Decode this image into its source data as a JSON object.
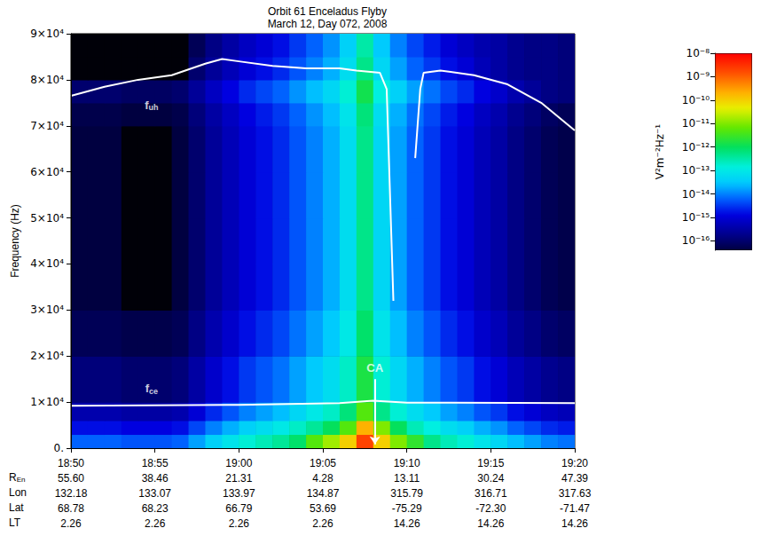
{
  "chart_data": {
    "type": "spectrogram",
    "title": "Orbit 61 Enceladus Flyby",
    "subtitle": "March 12, Day 072, 2008",
    "y_label": "Frequency (Hz)",
    "grid": false,
    "xlim": [
      1130,
      1160
    ],
    "xticks": [
      {
        "value": 1130,
        "label": "18:50"
      },
      {
        "value": 1135,
        "label": "18:55"
      },
      {
        "value": 1140,
        "label": "19:00"
      },
      {
        "value": 1145,
        "label": "19:05"
      },
      {
        "value": 1150,
        "label": "19:10"
      },
      {
        "value": 1155,
        "label": "19:15"
      },
      {
        "value": 1160,
        "label": "19:20"
      }
    ],
    "ephemeris": [
      {
        "name": {
          "text": "R",
          "subscript": "En"
        },
        "labels": [
          "55.60",
          "38.46",
          "21.31",
          "4.28",
          "13.11",
          "30.24",
          "47.39"
        ]
      },
      {
        "name": {
          "text": "Lon"
        },
        "labels": [
          "132.18",
          "133.07",
          "133.97",
          "134.87",
          "315.79",
          "316.71",
          "317.63"
        ]
      },
      {
        "name": {
          "text": "Lat"
        },
        "labels": [
          "68.78",
          "68.23",
          "66.79",
          "53.69",
          "-75.29",
          "-72.30",
          "-71.47"
        ]
      },
      {
        "name": {
          "text": "LT"
        },
        "labels": [
          "2.26",
          "2.26",
          "2.26",
          "2.26",
          "14.26",
          "14.26",
          "14.26"
        ]
      }
    ],
    "ylim": [
      0,
      90000
    ],
    "yticks": [
      {
        "value": 0,
        "label": "0."
      },
      {
        "value": 10000,
        "label": "1×10⁴"
      },
      {
        "value": 20000,
        "label": "2×10⁴"
      },
      {
        "value": 30000,
        "label": "3×10⁴"
      },
      {
        "value": 40000,
        "label": "4×10⁴"
      },
      {
        "value": 50000,
        "label": "5×10⁴"
      },
      {
        "value": 60000,
        "label": "6×10⁴"
      },
      {
        "value": 70000,
        "label": "7×10⁴"
      },
      {
        "value": 80000,
        "label": "8×10⁴"
      },
      {
        "value": 90000,
        "label": "9×10⁴"
      }
    ],
    "cells": {
      "x_edges": [
        1130,
        1131,
        1132,
        1133,
        1134,
        1135,
        1136,
        1137,
        1138,
        1139,
        1140,
        1141,
        1142,
        1143,
        1144,
        1145,
        1146,
        1147,
        1148,
        1149,
        1150,
        1151,
        1152,
        1153,
        1154,
        1155,
        1156,
        1157,
        1158,
        1159,
        1160
      ],
      "y_edges": [
        0,
        3000,
        6000,
        10000,
        20000,
        30000,
        40000,
        50000,
        60000,
        70000,
        75000,
        80000,
        85000,
        90000
      ],
      "values": [
        [
          6.3e-15,
          6.3e-15,
          6.3e-15,
          5e-15,
          5e-15,
          5e-15,
          6.3e-15,
          1.6e-14,
          4e-14,
          8e-14,
          1.6e-13,
          2.5e-13,
          4e-13,
          8e-13,
          5e-12,
          1.6e-11,
          1e-10,
          2e-09,
          1e-10,
          1e-11,
          2.5e-12,
          5e-13,
          2.5e-13,
          1.6e-13,
          8e-14,
          5e-14,
          2.5e-14,
          1.6e-14,
          1e-14,
          8e-15
        ],
        [
          1.6e-15,
          1.6e-15,
          1.6e-15,
          1.3e-15,
          1.3e-15,
          1.3e-15,
          1.6e-15,
          4e-15,
          1e-14,
          2e-14,
          4e-14,
          6.3e-14,
          1e-13,
          2e-13,
          4e-13,
          1e-12,
          5e-12,
          2e-10,
          1e-11,
          1e-12,
          2.5e-13,
          1.3e-13,
          6.3e-14,
          4e-14,
          2e-14,
          1.3e-14,
          6.3e-15,
          4e-15,
          2.5e-15,
          2e-15
        ],
        [
          4e-16,
          4e-16,
          4e-16,
          3.2e-16,
          3.2e-16,
          3.2e-16,
          4e-16,
          1e-15,
          2.5e-15,
          5e-15,
          1e-14,
          1.6e-14,
          2.5e-14,
          5e-14,
          1e-13,
          2e-13,
          6.3e-13,
          5e-12,
          5e-13,
          1.6e-13,
          6.3e-14,
          3.2e-14,
          1.6e-14,
          1e-14,
          5e-15,
          3.2e-15,
          1.6e-15,
          1e-15,
          6.3e-16,
          5e-16
        ],
        [
          1.3e-16,
          1.3e-16,
          1.3e-16,
          1e-16,
          1e-16,
          1e-16,
          1.3e-16,
          3.2e-16,
          8e-16,
          1.6e-15,
          3.2e-15,
          5e-15,
          8e-15,
          1.6e-14,
          3.2e-14,
          6.3e-14,
          2e-13,
          1.6e-12,
          1.6e-13,
          5e-14,
          2e-14,
          1e-14,
          5e-15,
          3.2e-15,
          1.6e-15,
          1e-15,
          5e-16,
          3.2e-16,
          2e-16,
          1.6e-16
        ],
        [
          6.3e-17,
          6.3e-17,
          6.3e-17,
          5e-17,
          5e-17,
          5e-17,
          6.3e-17,
          1.6e-16,
          4e-16,
          8e-16,
          1.6e-15,
          2.5e-15,
          4e-15,
          8e-15,
          1.6e-14,
          3.2e-14,
          1e-13,
          8e-13,
          8e-14,
          2.5e-14,
          1e-14,
          5e-15,
          2.5e-15,
          1.6e-15,
          8e-16,
          5e-16,
          2.5e-16,
          1.6e-16,
          1e-16,
          8e-17
        ],
        [
          4e-17,
          4e-17,
          4e-17,
          3.2e-17,
          3.2e-17,
          3.2e-17,
          4e-17,
          1e-16,
          2.5e-16,
          5e-16,
          1e-15,
          1.6e-15,
          2.5e-15,
          5e-15,
          1e-14,
          2e-14,
          6.3e-14,
          5e-13,
          5e-14,
          1.6e-14,
          6.3e-15,
          3.2e-15,
          1.6e-15,
          1e-15,
          5e-16,
          3.2e-16,
          1.6e-16,
          1e-16,
          6.3e-17,
          5e-17
        ],
        [
          4e-17,
          4e-17,
          4e-17,
          3.2e-17,
          3.2e-17,
          3.2e-17,
          4e-17,
          1e-16,
          2.5e-16,
          5e-16,
          1e-15,
          1.6e-15,
          2.5e-15,
          5e-15,
          1e-14,
          2e-14,
          6.3e-14,
          5e-13,
          5e-14,
          1.6e-14,
          6.3e-15,
          3.2e-15,
          1.6e-15,
          1e-15,
          5e-16,
          3.2e-16,
          1.6e-16,
          1e-16,
          6.3e-17,
          5e-17
        ],
        [
          4e-17,
          4e-17,
          4e-17,
          3.2e-17,
          3.2e-17,
          3.2e-17,
          4e-17,
          1e-16,
          2.5e-16,
          5e-16,
          1e-15,
          1.6e-15,
          2.5e-15,
          5e-15,
          1e-14,
          2e-14,
          6.3e-14,
          5e-13,
          5e-14,
          1.6e-14,
          6.3e-15,
          3.2e-15,
          1.6e-15,
          1e-15,
          5e-16,
          3.2e-16,
          1.6e-16,
          1e-16,
          6.3e-17,
          5e-17
        ],
        [
          4e-17,
          4e-17,
          4e-17,
          3.2e-17,
          3.2e-17,
          3.2e-17,
          4e-17,
          1e-16,
          2.5e-16,
          5e-16,
          1e-15,
          1.6e-15,
          2.5e-15,
          5e-15,
          1e-14,
          2e-14,
          6.3e-14,
          5e-13,
          5e-14,
          1.6e-14,
          6.3e-15,
          3.2e-15,
          1.6e-15,
          1e-15,
          5e-16,
          3.2e-16,
          1.6e-16,
          1e-16,
          6.3e-17,
          5e-17
        ],
        [
          5e-17,
          5e-17,
          5e-17,
          4e-17,
          4e-17,
          4e-17,
          5e-17,
          1.3e-16,
          3.2e-16,
          6.3e-16,
          1.3e-15,
          2e-15,
          3.2e-15,
          6.3e-15,
          1.3e-14,
          2.5e-14,
          8e-14,
          6.3e-13,
          6.3e-14,
          2e-14,
          8e-15,
          4e-15,
          2e-15,
          1.3e-15,
          6.3e-16,
          4e-16,
          2e-16,
          1.3e-16,
          8e-17,
          6.3e-17
        ],
        [
          1e-16,
          1e-16,
          1e-16,
          8e-17,
          8e-17,
          8e-17,
          1e-16,
          2.5e-16,
          6.3e-16,
          1.3e-15,
          2.5e-15,
          4e-15,
          6.3e-15,
          1.3e-14,
          2.5e-14,
          5e-14,
          1.6e-13,
          1.3e-12,
          1.3e-13,
          4e-14,
          1.6e-14,
          8e-15,
          4e-15,
          2.5e-15,
          1.3e-15,
          8e-16,
          4e-16,
          2.5e-16,
          1.6e-16,
          1.3e-16
        ],
        [
          2.5e-17,
          2.5e-17,
          2.5e-17,
          2.5e-17,
          2.5e-17,
          2.5e-17,
          2.5e-17,
          1e-16,
          2.5e-16,
          5e-16,
          1e-15,
          1.6e-15,
          2.5e-15,
          5e-15,
          1e-14,
          2e-14,
          6.3e-14,
          5e-13,
          5e-14,
          1.6e-14,
          6.3e-15,
          3.2e-15,
          1.6e-15,
          1e-15,
          5e-16,
          3.2e-16,
          2e-16,
          1.6e-16,
          1.6e-16,
          1.3e-16
        ],
        [
          2.5e-17,
          2.5e-17,
          2.5e-17,
          2.5e-17,
          2.5e-17,
          2.5e-17,
          2.5e-17,
          6.3e-17,
          1.6e-16,
          3.2e-16,
          6.3e-16,
          1e-15,
          1.6e-15,
          3.2e-15,
          6.3e-15,
          1.3e-14,
          4e-14,
          3.2e-13,
          3.2e-14,
          1e-14,
          4e-15,
          2e-15,
          1e-15,
          6.3e-16,
          4e-16,
          3.2e-16,
          2e-16,
          1.6e-16,
          1.6e-16,
          1.3e-16
        ]
      ]
    },
    "colorbar": {
      "title": "V²m⁻²Hz⁻¹",
      "log": true,
      "range": [
        4e-17,
        1e-08
      ],
      "ticks": [
        {
          "value": 1e-16,
          "label": "10⁻¹⁶"
        },
        {
          "value": 1e-15,
          "label": "10⁻¹⁵"
        },
        {
          "value": 1e-14,
          "label": "10⁻¹⁴"
        },
        {
          "value": 1e-13,
          "label": "10⁻¹³"
        },
        {
          "value": 1e-12,
          "label": "10⁻¹²"
        },
        {
          "value": 1e-11,
          "label": "10⁻¹¹"
        },
        {
          "value": 1e-10,
          "label": "10⁻¹⁰"
        },
        {
          "value": 1e-09,
          "label": "10⁻⁹"
        },
        {
          "value": 1e-08,
          "label": "10⁻⁸"
        }
      ]
    },
    "series": [
      {
        "type": "line",
        "color": "#ffffff",
        "x": [
          1130,
          1132,
          1134,
          1136,
          1138,
          1139,
          1140,
          1142,
          1144,
          1146,
          1147,
          1148.4,
          1148.8,
          1149.2,
          1149.8,
          1150.5,
          1150.8,
          1151,
          1152,
          1154,
          1156,
          1158,
          1160
        ],
        "values": [
          76500,
          78500,
          80000,
          81000,
          83500,
          84500,
          84000,
          83000,
          82500,
          82500,
          82000,
          81500,
          78000,
          32000,
          null,
          63000,
          78000,
          81500,
          82000,
          81000,
          79000,
          75000,
          69000
        ]
      },
      {
        "type": "line",
        "color": "#ffffff",
        "x": [
          1130,
          1140,
          1146,
          1148,
          1150,
          1160
        ],
        "values": [
          9200,
          9400,
          9800,
          10300,
          9900,
          9800
        ]
      }
    ],
    "annotations": [
      {
        "text": "f",
        "subscript": "uh",
        "x": 1134.8,
        "y": 74500,
        "color": "#ffffff"
      },
      {
        "text": "f",
        "subscript": "ce",
        "x": 1134.8,
        "y": 13000,
        "color": "#ffffff"
      },
      {
        "text": "CA",
        "x": 1148.1,
        "y": 17500,
        "color": "#ffffff",
        "arrow_from": 15000,
        "arrow_to": 800
      }
    ]
  }
}
